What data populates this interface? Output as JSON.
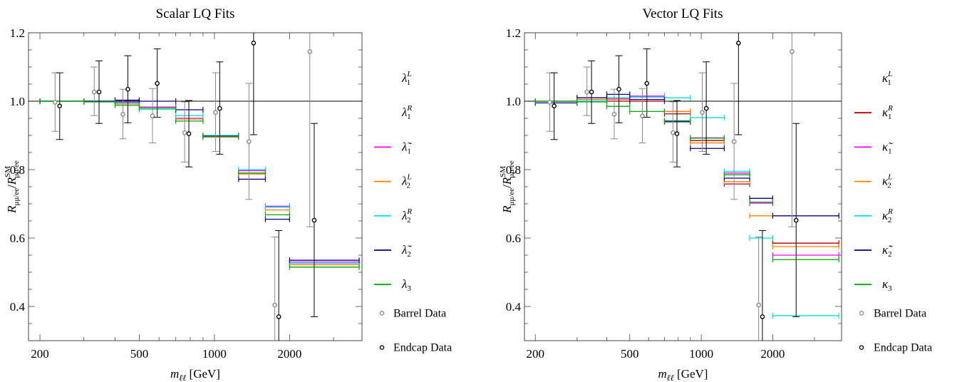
{
  "chart_data": [
    {
      "type": "scatter",
      "title": "Scalar LQ Fits",
      "xlabel": "m_ℓℓ [GeV]",
      "ylabel": "R_μμ/ee / R^SM_μμ/ee",
      "xscale": "log",
      "xlim": [
        180,
        3900
      ],
      "ylim": [
        0.3,
        1.2
      ],
      "xticks": [
        {
          "v": 200,
          "label": "200"
        },
        {
          "v": 500,
          "label": "500"
        },
        {
          "v": 1000,
          "label": "1000"
        },
        {
          "v": 2000,
          "label": "2000"
        }
      ],
      "yticks": [
        {
          "v": 0.4,
          "label": "0.4"
        },
        {
          "v": 0.6,
          "label": "0.6"
        },
        {
          "v": 0.8,
          "label": "0.8"
        },
        {
          "v": 1.0,
          "label": "1.0"
        },
        {
          "v": 1.2,
          "label": "1.2"
        }
      ],
      "reference_line": 1.0,
      "legend_position": "right",
      "legend": [
        {
          "label": "λ",
          "sup": "L",
          "sub": "1",
          "color": "#800000",
          "marker": "line",
          "visible": false
        },
        {
          "label": "λ",
          "sup": "R",
          "sub": "1",
          "color": "#b00000",
          "marker": "line",
          "visible": false
        },
        {
          "label": "λ̃",
          "sup": "",
          "sub": "1",
          "color": "#ff00ff",
          "marker": "line",
          "visible": true
        },
        {
          "label": "λ",
          "sup": "L",
          "sub": "2",
          "color": "#ff8000",
          "marker": "line",
          "visible": true
        },
        {
          "label": "λ",
          "sup": "R",
          "sub": "2",
          "color": "#00e0e0",
          "marker": "line",
          "visible": true
        },
        {
          "label": "λ̃",
          "sup": "",
          "sub": "2",
          "color": "#000090",
          "marker": "line",
          "visible": true
        },
        {
          "label": "λ",
          "sup": "",
          "sub": "3",
          "color": "#00aa00",
          "marker": "line",
          "visible": true
        },
        {
          "label": "Barrel Data",
          "sup": "",
          "sub": "",
          "color": "#888888",
          "marker": "circle",
          "visible": true
        },
        {
          "label": "Endcap Data",
          "sup": "",
          "sub": "",
          "color": "#000000",
          "marker": "circle",
          "visible": true
        }
      ],
      "bins": [
        [
          200,
          300
        ],
        [
          300,
          400
        ],
        [
          400,
          500
        ],
        [
          500,
          700
        ],
        [
          700,
          900
        ],
        [
          900,
          1250
        ],
        [
          1250,
          1600
        ],
        [
          1600,
          2000
        ],
        [
          2000,
          3800
        ]
      ],
      "series": [
        {
          "name": "λ̃₁",
          "color": "#ff00ff",
          "values": [
            1.0,
            1.0,
            0.997,
            0.983,
            0.95,
            0.895,
            0.797,
            0.693,
            0.53
          ]
        },
        {
          "name": "λ₂^L",
          "color": "#ff8000",
          "values": [
            1.0,
            1.0,
            0.992,
            0.98,
            0.948,
            0.896,
            0.787,
            0.682,
            0.522
          ]
        },
        {
          "name": "λ₂^R",
          "color": "#00e0e0",
          "values": [
            1.0,
            1.0,
            0.995,
            0.976,
            0.958,
            0.9,
            0.8,
            0.69,
            0.526
          ]
        },
        {
          "name": "λ̃₂",
          "color": "#000090",
          "values": [
            1.0,
            1.0,
            1.003,
            1.0,
            0.975,
            0.898,
            0.772,
            0.655,
            0.535
          ]
        },
        {
          "name": "λ₃",
          "color": "#00aa00",
          "values": [
            1.0,
            0.998,
            0.988,
            0.98,
            0.942,
            0.897,
            0.79,
            0.668,
            0.515
          ]
        }
      ],
      "barrel_data": [
        {
          "x": 230,
          "y": 0.997,
          "lo": 0.912,
          "hi": 1.083
        },
        {
          "x": 330,
          "y": 1.027,
          "lo": 0.958,
          "hi": 1.1
        },
        {
          "x": 430,
          "y": 0.962,
          "lo": 0.89,
          "hi": 1.035
        },
        {
          "x": 565,
          "y": 0.957,
          "lo": 0.878,
          "hi": 1.037
        },
        {
          "x": 760,
          "y": 0.908,
          "lo": 0.822,
          "hi": 0.998
        },
        {
          "x": 1010,
          "y": 0.967,
          "lo": 0.853,
          "hi": 1.083
        },
        {
          "x": 1375,
          "y": 0.882,
          "lo": 0.713,
          "hi": 1.052
        },
        {
          "x": 1745,
          "y": 0.404,
          "lo": 0.3,
          "hi": 0.603
        },
        {
          "x": 2410,
          "y": 1.145,
          "lo": 0.633,
          "hi": 1.2
        }
      ],
      "endcap_data": [
        {
          "x": 240,
          "y": 0.986,
          "lo": 0.888,
          "hi": 1.083
        },
        {
          "x": 345,
          "y": 1.027,
          "lo": 0.935,
          "hi": 1.118
        },
        {
          "x": 450,
          "y": 1.035,
          "lo": 0.937,
          "hi": 1.133
        },
        {
          "x": 590,
          "y": 1.052,
          "lo": 0.953,
          "hi": 1.153
        },
        {
          "x": 790,
          "y": 0.905,
          "lo": 0.808,
          "hi": 1.002
        },
        {
          "x": 1050,
          "y": 0.979,
          "lo": 0.845,
          "hi": 1.115
        },
        {
          "x": 1435,
          "y": 1.17,
          "lo": 0.902,
          "hi": 1.2
        },
        {
          "x": 1810,
          "y": 0.37,
          "lo": 0.3,
          "hi": 0.622
        },
        {
          "x": 2510,
          "y": 0.652,
          "lo": 0.37,
          "hi": 0.935
        }
      ]
    },
    {
      "type": "scatter",
      "title": "Vector LQ Fits",
      "xlabel": "m_ℓℓ [GeV]",
      "ylabel": "R_μμ/ee / R^SM_μμ/ee",
      "xscale": "log",
      "xlim": [
        180,
        3900
      ],
      "ylim": [
        0.3,
        1.2
      ],
      "xticks": [
        {
          "v": 200,
          "label": "200"
        },
        {
          "v": 500,
          "label": "500"
        },
        {
          "v": 1000,
          "label": "1000"
        },
        {
          "v": 2000,
          "label": "2000"
        }
      ],
      "yticks": [
        {
          "v": 0.4,
          "label": "0.4"
        },
        {
          "v": 0.6,
          "label": "0.6"
        },
        {
          "v": 0.8,
          "label": "0.8"
        },
        {
          "v": 1.0,
          "label": "1.0"
        },
        {
          "v": 1.2,
          "label": "1.2"
        }
      ],
      "reference_line": 1.0,
      "legend_position": "right",
      "legend": [
        {
          "label": "κ",
          "sup": "L",
          "sub": "1",
          "color": "#800000",
          "marker": "line",
          "visible": false
        },
        {
          "label": "κ",
          "sup": "R",
          "sub": "1",
          "color": "#b00000",
          "marker": "line",
          "visible": true
        },
        {
          "label": "κ̃",
          "sup": "",
          "sub": "1",
          "color": "#ff00ff",
          "marker": "line",
          "visible": true
        },
        {
          "label": "κ",
          "sup": "L",
          "sub": "2",
          "color": "#ff8000",
          "marker": "line",
          "visible": true
        },
        {
          "label": "κ",
          "sup": "R",
          "sub": "2",
          "color": "#00e0e0",
          "marker": "line",
          "visible": true
        },
        {
          "label": "κ̃",
          "sup": "",
          "sub": "2",
          "color": "#000090",
          "marker": "line",
          "visible": true
        },
        {
          "label": "κ",
          "sup": "",
          "sub": "3",
          "color": "#00aa00",
          "marker": "line",
          "visible": true
        },
        {
          "label": "Barrel Data",
          "sup": "",
          "sub": "",
          "color": "#888888",
          "marker": "circle",
          "visible": true
        },
        {
          "label": "Endcap Data",
          "sup": "",
          "sub": "",
          "color": "#000000",
          "marker": "circle",
          "visible": true
        }
      ],
      "bins": [
        [
          200,
          300
        ],
        [
          300,
          400
        ],
        [
          400,
          500
        ],
        [
          500,
          700
        ],
        [
          700,
          900
        ],
        [
          900,
          1250
        ],
        [
          1250,
          1600
        ],
        [
          1600,
          2000
        ],
        [
          2000,
          3800
        ]
      ],
      "series": [
        {
          "name": "κ₁^R",
          "color": "#b00000",
          "values": [
            1.0,
            1.005,
            1.0,
            1.0,
            0.963,
            0.885,
            0.758,
            null,
            0.585
          ]
        },
        {
          "name": "κ̃₁",
          "color": "#ff00ff",
          "values": [
            1.0,
            1.01,
            1.008,
            1.015,
            0.97,
            0.893,
            0.79,
            0.702,
            0.55
          ]
        },
        {
          "name": "κ₂^L",
          "color": "#ff8000",
          "values": [
            1.0,
            1.005,
            1.005,
            1.005,
            0.97,
            0.878,
            0.765,
            0.665,
            0.575
          ]
        },
        {
          "name": "κ₂^R",
          "color": "#00e0e0",
          "values": [
            1.0,
            1.0,
            1.01,
            1.012,
            1.01,
            0.952,
            0.795,
            0.6,
            0.373
          ]
        },
        {
          "name": "κ̃₂",
          "color": "#000090",
          "values": [
            0.995,
            1.01,
            1.02,
            1.005,
            0.94,
            0.862,
            0.775,
            0.716,
            0.665
          ]
        },
        {
          "name": "κ₃",
          "color": "#00aa00",
          "values": [
            1.0,
            0.998,
            0.985,
            0.97,
            0.943,
            0.892,
            0.785,
            0.705,
            0.537
          ]
        }
      ],
      "barrel_data": [
        {
          "x": 230,
          "y": 0.997,
          "lo": 0.912,
          "hi": 1.083
        },
        {
          "x": 330,
          "y": 1.027,
          "lo": 0.958,
          "hi": 1.1
        },
        {
          "x": 430,
          "y": 0.962,
          "lo": 0.89,
          "hi": 1.035
        },
        {
          "x": 565,
          "y": 0.957,
          "lo": 0.878,
          "hi": 1.037
        },
        {
          "x": 760,
          "y": 0.908,
          "lo": 0.822,
          "hi": 0.998
        },
        {
          "x": 1010,
          "y": 0.967,
          "lo": 0.853,
          "hi": 1.083
        },
        {
          "x": 1375,
          "y": 0.882,
          "lo": 0.713,
          "hi": 1.052
        },
        {
          "x": 1745,
          "y": 0.404,
          "lo": 0.3,
          "hi": 0.603
        },
        {
          "x": 2410,
          "y": 1.145,
          "lo": 0.633,
          "hi": 1.2
        }
      ],
      "endcap_data": [
        {
          "x": 240,
          "y": 0.986,
          "lo": 0.888,
          "hi": 1.083
        },
        {
          "x": 345,
          "y": 1.027,
          "lo": 0.935,
          "hi": 1.118
        },
        {
          "x": 450,
          "y": 1.035,
          "lo": 0.937,
          "hi": 1.133
        },
        {
          "x": 590,
          "y": 1.052,
          "lo": 0.953,
          "hi": 1.153
        },
        {
          "x": 790,
          "y": 0.905,
          "lo": 0.808,
          "hi": 1.002
        },
        {
          "x": 1050,
          "y": 0.979,
          "lo": 0.845,
          "hi": 1.115
        },
        {
          "x": 1435,
          "y": 1.17,
          "lo": 0.902,
          "hi": 1.2
        },
        {
          "x": 1810,
          "y": 0.37,
          "lo": 0.3,
          "hi": 0.622
        },
        {
          "x": 2510,
          "y": 0.652,
          "lo": 0.37,
          "hi": 0.935
        }
      ]
    }
  ]
}
